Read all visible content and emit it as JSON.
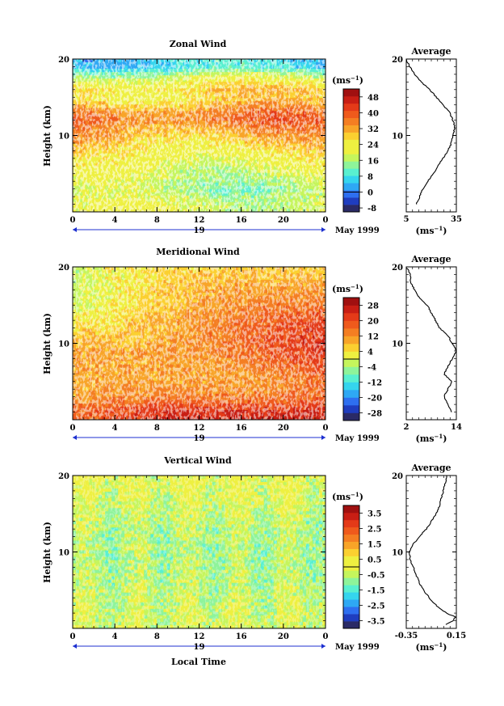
{
  "chart_data": [
    {
      "type": "heatmap",
      "title": "Zonal Wind",
      "ylabel": "Height (km)",
      "xlabel": "",
      "x_ticks": [
        "0",
        "4",
        "8",
        "12",
        "16",
        "20",
        "0"
      ],
      "y_ticks": [
        "20",
        "10"
      ],
      "date_label": "19",
      "month_label": "May 1999",
      "xlim": [
        0,
        24
      ],
      "ylim": [
        0,
        20
      ],
      "colorbar": {
        "unit": "(ms",
        "unit_sup": "−1",
        "unit_close": ")",
        "levels": [
          -8,
          -4,
          0,
          4,
          8,
          12,
          16,
          20,
          24,
          28,
          32,
          36,
          40,
          44,
          48,
          52
        ],
        "labels": [
          "48",
          "40",
          "32",
          "24",
          "16",
          "8",
          "0",
          "-8"
        ],
        "label_values": [
          48,
          40,
          32,
          24,
          16,
          8,
          0,
          -8
        ],
        "min": -10,
        "max": 52
      },
      "profile_by_height": [
        {
          "height": 1,
          "value": 20
        },
        {
          "height": 3,
          "value": 16
        },
        {
          "height": 5,
          "value": 20
        },
        {
          "height": 7,
          "value": 24
        },
        {
          "height": 9,
          "value": 30
        },
        {
          "height": 11,
          "value": 36
        },
        {
          "height": 12,
          "value": 40
        },
        {
          "height": 13,
          "value": 38
        },
        {
          "height": 14,
          "value": 32
        },
        {
          "height": 15,
          "value": 28
        },
        {
          "height": 16,
          "value": 30
        },
        {
          "height": 17,
          "value": 24
        },
        {
          "height": 18,
          "value": 16
        },
        {
          "height": 19,
          "value": 6
        }
      ],
      "average": {
        "title": "Average",
        "x_ticks": [
          "5",
          "35"
        ],
        "xlim": [
          5,
          35
        ],
        "y_ticks": [
          "20",
          "10"
        ],
        "xlabel": "(ms",
        "xlabel_sup": "−1",
        "xlabel_close": ")",
        "profile": [
          {
            "height": 1,
            "value": 11
          },
          {
            "height": 2,
            "value": 13
          },
          {
            "height": 3,
            "value": 15
          },
          {
            "height": 4,
            "value": 18
          },
          {
            "height": 5,
            "value": 21
          },
          {
            "height": 6,
            "value": 24
          },
          {
            "height": 7,
            "value": 27
          },
          {
            "height": 8,
            "value": 30
          },
          {
            "height": 9,
            "value": 32
          },
          {
            "height": 10,
            "value": 33
          },
          {
            "height": 11,
            "value": 34
          },
          {
            "height": 12,
            "value": 33
          },
          {
            "height": 13,
            "value": 31
          },
          {
            "height": 14,
            "value": 27
          },
          {
            "height": 15,
            "value": 23
          },
          {
            "height": 16,
            "value": 19
          },
          {
            "height": 17,
            "value": 14
          },
          {
            "height": 18,
            "value": 10
          },
          {
            "height": 19,
            "value": 7
          },
          {
            "height": 20,
            "value": 5
          }
        ]
      }
    },
    {
      "type": "heatmap",
      "title": "Meridional Wind",
      "ylabel": "Height (km)",
      "xlabel": "",
      "x_ticks": [
        "0",
        "4",
        "8",
        "12",
        "16",
        "20",
        "0"
      ],
      "y_ticks": [
        "20",
        "10"
      ],
      "date_label": "19",
      "month_label": "May 1999",
      "xlim": [
        0,
        24
      ],
      "ylim": [
        0,
        20
      ],
      "colorbar": {
        "unit": "(ms",
        "unit_sup": "−1",
        "unit_close": ")",
        "levels": [
          -28,
          -24,
          -20,
          -16,
          -12,
          -8,
          -4,
          0,
          4,
          8,
          12,
          16,
          20,
          24,
          28
        ],
        "labels": [
          "28",
          "20",
          "12",
          "4",
          "-4",
          "-12",
          "-20",
          "-28"
        ],
        "label_values": [
          28,
          20,
          12,
          4,
          -4,
          -12,
          -20,
          -28
        ],
        "min": -32,
        "max": 32
      },
      "profile_by_height": [
        {
          "height": 1,
          "value": 20
        },
        {
          "height": 3,
          "value": 12
        },
        {
          "height": 5,
          "value": 10
        },
        {
          "height": 7,
          "value": 12
        },
        {
          "height": 9,
          "value": 14
        },
        {
          "height": 11,
          "value": 12
        },
        {
          "height": 13,
          "value": 10
        },
        {
          "height": 15,
          "value": 6
        },
        {
          "height": 17,
          "value": 4
        },
        {
          "height": 19,
          "value": 2
        }
      ],
      "average": {
        "title": "Average",
        "x_ticks": [
          "2",
          "14"
        ],
        "xlim": [
          2,
          14
        ],
        "y_ticks": [
          "20",
          "10"
        ],
        "xlabel": "(ms",
        "xlabel_sup": "−1",
        "xlabel_close": ")",
        "profile": [
          {
            "height": 1,
            "value": 13
          },
          {
            "height": 2,
            "value": 12
          },
          {
            "height": 3,
            "value": 11
          },
          {
            "height": 4,
            "value": 12
          },
          {
            "height": 5,
            "value": 13
          },
          {
            "height": 6,
            "value": 11
          },
          {
            "height": 7,
            "value": 12
          },
          {
            "height": 8,
            "value": 13
          },
          {
            "height": 9,
            "value": 14
          },
          {
            "height": 10,
            "value": 13
          },
          {
            "height": 11,
            "value": 12
          },
          {
            "height": 12,
            "value": 10
          },
          {
            "height": 13,
            "value": 9
          },
          {
            "height": 14,
            "value": 8
          },
          {
            "height": 15,
            "value": 7
          },
          {
            "height": 16,
            "value": 5
          },
          {
            "height": 17,
            "value": 4
          },
          {
            "height": 18,
            "value": 3
          },
          {
            "height": 19,
            "value": 3
          },
          {
            "height": 20,
            "value": 2
          }
        ]
      }
    },
    {
      "type": "heatmap",
      "title": "Vertical Wind",
      "ylabel": "Height (km)",
      "xlabel": "Local Time",
      "x_ticks": [
        "0",
        "4",
        "8",
        "12",
        "16",
        "20",
        "0"
      ],
      "y_ticks": [
        "20",
        "10"
      ],
      "date_label": "19",
      "month_label": "May 1999",
      "xlim": [
        0,
        24
      ],
      "ylim": [
        0,
        20
      ],
      "colorbar": {
        "unit": "(ms",
        "unit_sup": "−1",
        "unit_close": ")",
        "levels": [
          -3.5,
          -3.0,
          -2.5,
          -2.0,
          -1.5,
          -1.0,
          -0.5,
          0,
          0.5,
          1.0,
          1.5,
          2.0,
          2.5,
          3.0,
          3.5,
          4.0
        ],
        "labels": [
          "3.5",
          "2.5",
          "1.5",
          "0.5",
          "-0.5",
          "-1.5",
          "-2.5",
          "-3.5"
        ],
        "label_values": [
          3.5,
          2.5,
          1.5,
          0.5,
          -0.5,
          -1.5,
          -2.5,
          -3.5
        ],
        "min": -4.0,
        "max": 4.0
      },
      "profile_by_height": [
        {
          "height": 1,
          "value": -0.1
        },
        {
          "height": 3,
          "value": -0.2
        },
        {
          "height": 5,
          "value": -0.3
        },
        {
          "height": 7,
          "value": -0.4
        },
        {
          "height": 9,
          "value": -0.5
        },
        {
          "height": 11,
          "value": -0.5
        },
        {
          "height": 13,
          "value": -0.4
        },
        {
          "height": 15,
          "value": -0.2
        },
        {
          "height": 17,
          "value": 0.0
        },
        {
          "height": 19,
          "value": 0.1
        }
      ],
      "average": {
        "title": "Average",
        "x_ticks": [
          "-0.35",
          "0.15"
        ],
        "xlim": [
          -0.35,
          0.15
        ],
        "y_ticks": [
          "20",
          "10"
        ],
        "xlabel": "(ms",
        "xlabel_sup": "−1",
        "xlabel_close": ")",
        "profile": [
          {
            "height": 0.5,
            "value": 0.05
          },
          {
            "height": 1,
            "value": 0.12
          },
          {
            "height": 1.5,
            "value": 0.14
          },
          {
            "height": 2,
            "value": 0.05
          },
          {
            "height": 3,
            "value": -0.05
          },
          {
            "height": 4,
            "value": -0.12
          },
          {
            "height": 5,
            "value": -0.18
          },
          {
            "height": 6,
            "value": -0.22
          },
          {
            "height": 7,
            "value": -0.25
          },
          {
            "height": 8,
            "value": -0.28
          },
          {
            "height": 9,
            "value": -0.31
          },
          {
            "height": 10,
            "value": -0.32
          },
          {
            "height": 11,
            "value": -0.28
          },
          {
            "height": 12,
            "value": -0.22
          },
          {
            "height": 13,
            "value": -0.15
          },
          {
            "height": 14,
            "value": -0.1
          },
          {
            "height": 15,
            "value": -0.05
          },
          {
            "height": 16,
            "value": -0.02
          },
          {
            "height": 17,
            "value": 0.0
          },
          {
            "height": 18,
            "value": 0.02
          },
          {
            "height": 19,
            "value": 0.04
          },
          {
            "height": 20,
            "value": 0.05
          }
        ]
      }
    }
  ],
  "colors": {
    "scale": [
      "#2a2a66",
      "#1f3dbf",
      "#2e6ff0",
      "#2ea8f4",
      "#35d5ee",
      "#59f0d0",
      "#8ef49a",
      "#c5f55c",
      "#eef040",
      "#fbd030",
      "#f8a428",
      "#f47e22",
      "#ef5a1c",
      "#e43a18",
      "#c81e14",
      "#a01010"
    ]
  }
}
